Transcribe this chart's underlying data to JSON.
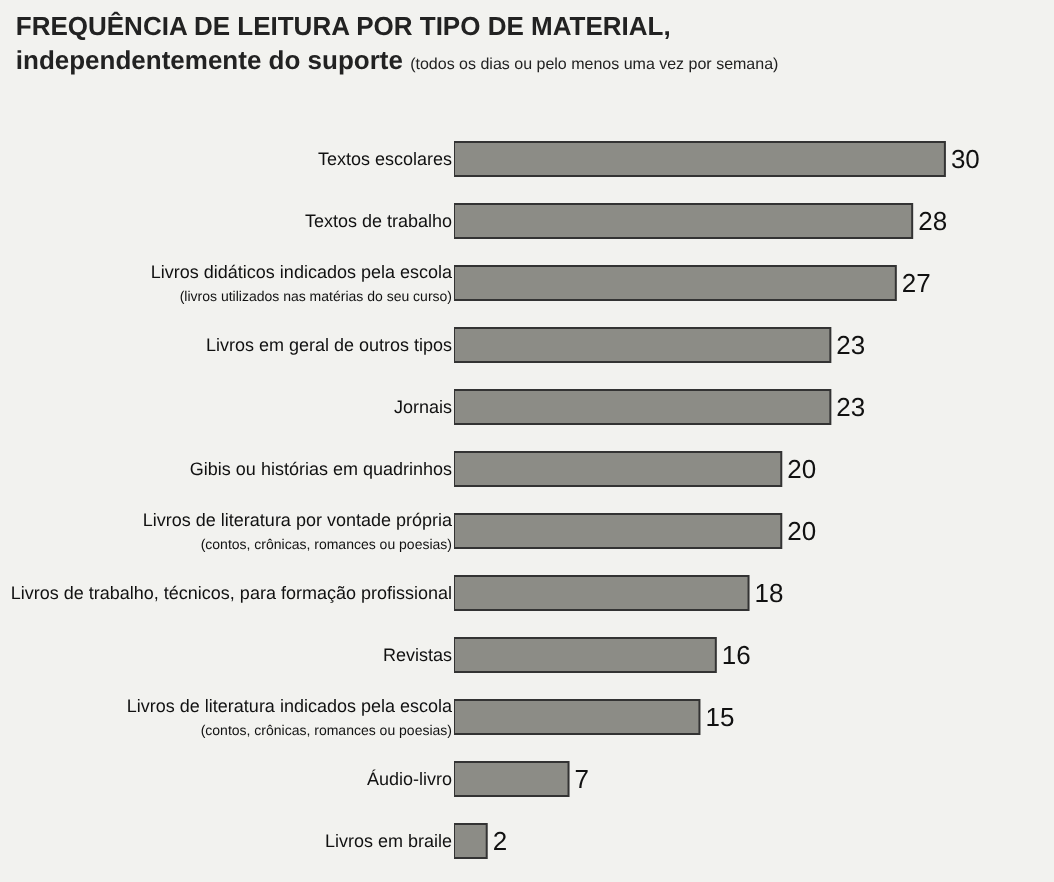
{
  "chart_data": {
    "type": "bar",
    "orientation": "horizontal",
    "title": "FREQUÊNCIA DE LEITURA POR TIPO DE MATERIAL,\nindependentemente do suporte",
    "subtitle": "(todos os dias ou pelo menos uma vez por semana)",
    "categories": [
      "Textos escolares",
      "Textos de trabalho",
      "Livros didáticos indicados pela escola\n(livros utilizados nas matérias do seu curso)",
      "Livros em geral de outros tipos",
      "Jornais",
      "Gibis ou histórias em quadrinhos",
      "Livros de literatura por vontade própria\n(contos, crônicas, romances ou poesias)",
      "Livros de trabalho, técnicos, para formação profissional",
      "Revistas",
      "Livros de literatura indicados pela escola\n(contos, crônicas, romances ou poesias)",
      "Áudio-livro",
      "Livros em braile"
    ],
    "values": [
      30,
      28,
      27,
      23,
      23,
      20,
      20,
      18,
      16,
      15,
      7,
      2
    ],
    "color": "#8c8c86",
    "data_labels": true
  }
}
